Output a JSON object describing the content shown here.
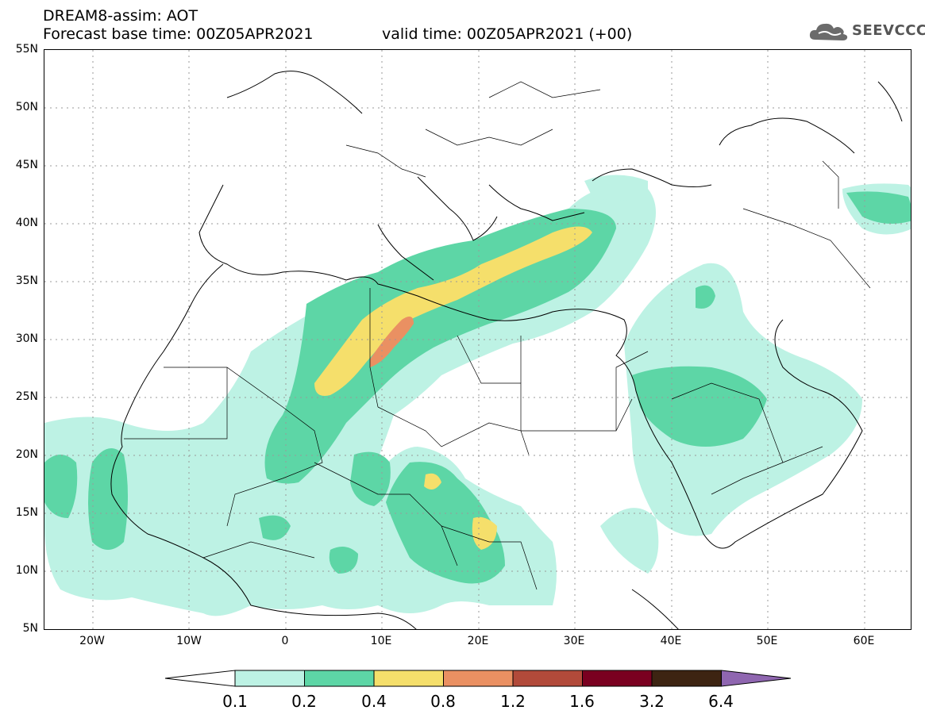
{
  "header": {
    "title_line1": "DREAM8-assim: AOT",
    "title_line2": "Forecast base time: 00Z05APR2021",
    "valid_time": "valid time: 00Z05APR2021 (+00)"
  },
  "logo": {
    "text": "SEEVCCC",
    "icon": "cloud-icon"
  },
  "map": {
    "lat_labels": [
      "55N",
      "50N",
      "45N",
      "40N",
      "35N",
      "30N",
      "25N",
      "20N",
      "15N",
      "10N",
      "5N"
    ],
    "lon_labels": [
      "20W",
      "10W",
      "0",
      "10E",
      "20E",
      "30E",
      "40E",
      "50E",
      "60E"
    ],
    "extent": {
      "lon_min": -25,
      "lon_max": 65,
      "lat_min": 5,
      "lat_max": 55
    },
    "field": "Aerosol optical thickness"
  },
  "legend": {
    "labels": [
      "0.1",
      "0.2",
      "0.4",
      "0.8",
      "1.2",
      "1.6",
      "3.2",
      "6.4"
    ],
    "colors": [
      "#ffffff",
      "#bdf2e4",
      "#5dd6a6",
      "#f5df6b",
      "#ea9062",
      "#b24a3a",
      "#7a0020",
      "#3d2412",
      "#8f66b0"
    ]
  }
}
